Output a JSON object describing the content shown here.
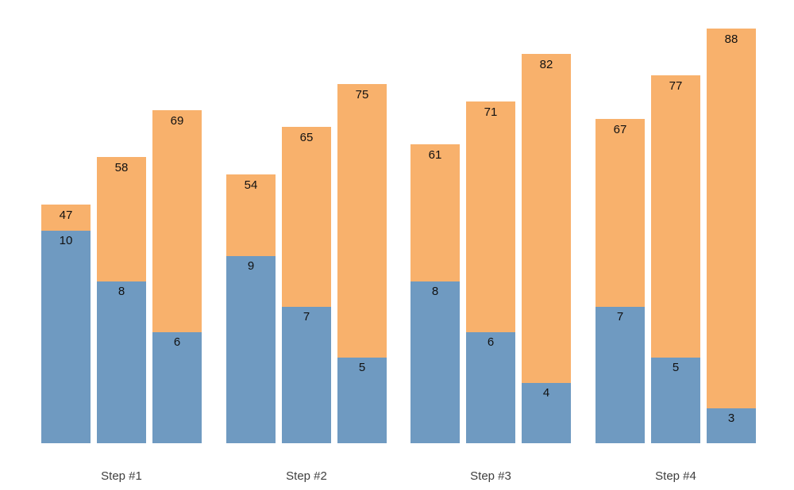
{
  "page": {
    "background": "#ffffff"
  },
  "chart_data": {
    "type": "bar",
    "subtype": "grouped-stacked",
    "title": "",
    "xlabel": "",
    "ylabel": "",
    "axes_visible": false,
    "gridlines": false,
    "legend": null,
    "colors": {
      "bottom_segment": "#6f9ac1",
      "top_segment": "#f8b16c",
      "bar_label": "#111111",
      "axis_label": "#3f3f3f"
    },
    "categories": [
      "Step #1",
      "Step #2",
      "Step #3",
      "Step #4"
    ],
    "groups": [
      {
        "label": "Step #1",
        "bars": [
          {
            "bottom_value": 10,
            "top_label": 47
          },
          {
            "bottom_value": 8,
            "top_label": 58
          },
          {
            "bottom_value": 6,
            "top_label": 69
          }
        ]
      },
      {
        "label": "Step #2",
        "bars": [
          {
            "bottom_value": 9,
            "top_label": 54
          },
          {
            "bottom_value": 7,
            "top_label": 65
          },
          {
            "bottom_value": 5,
            "top_label": 75
          }
        ]
      },
      {
        "label": "Step #3",
        "bars": [
          {
            "bottom_value": 8,
            "top_label": 61
          },
          {
            "bottom_value": 6,
            "top_label": 71
          },
          {
            "bottom_value": 4,
            "top_label": 82
          }
        ]
      },
      {
        "label": "Step #4",
        "bars": [
          {
            "bottom_value": 7,
            "top_label": 67
          },
          {
            "bottom_value": 5,
            "top_label": 77
          },
          {
            "bottom_value": 3,
            "top_label": 88
          }
        ]
      }
    ]
  }
}
